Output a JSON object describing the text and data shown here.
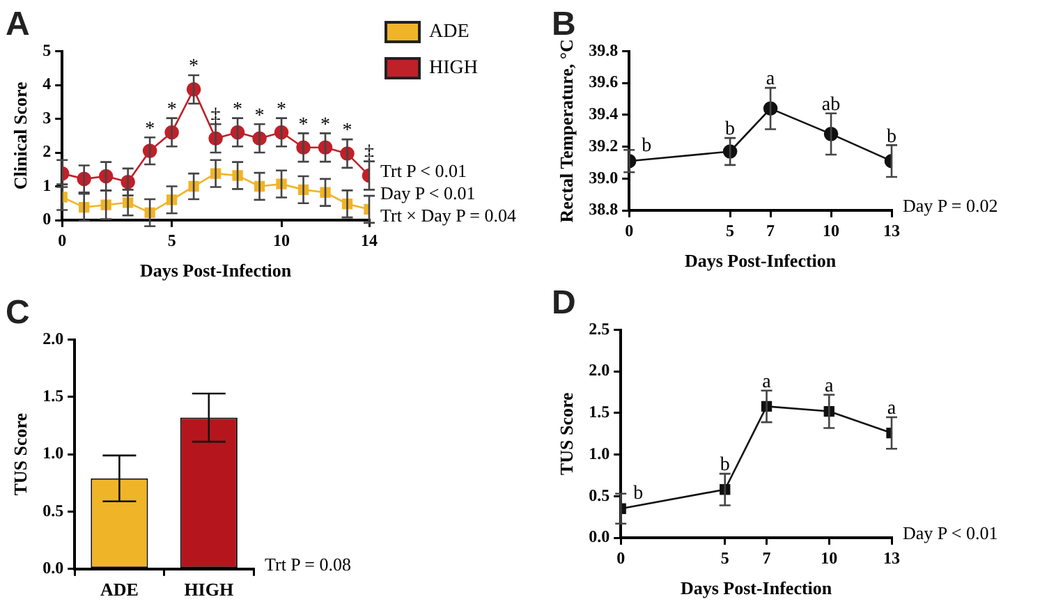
{
  "chart_data": [
    {
      "type": "line",
      "title": "A",
      "xlabel": "Days Post-Infection",
      "ylabel": "Clinical Score",
      "x": [
        0,
        1,
        2,
        3,
        4,
        5,
        6,
        7,
        8,
        9,
        10,
        11,
        12,
        13,
        14
      ],
      "series": [
        {
          "name": "ADE",
          "color": "#f0b429",
          "marker": "square",
          "values": [
            0.68,
            0.38,
            0.45,
            0.52,
            0.22,
            0.6,
            1.0,
            1.38,
            1.32,
            1.0,
            1.07,
            0.9,
            0.82,
            0.48,
            0.32
          ],
          "errors": [
            0.38,
            0.4,
            0.42,
            0.38,
            0.4,
            0.4,
            0.38,
            0.4,
            0.4,
            0.4,
            0.4,
            0.4,
            0.4,
            0.4,
            0.4
          ]
        },
        {
          "name": "HIGH",
          "color": "#c0202a",
          "marker": "circle",
          "values": [
            1.38,
            1.22,
            1.3,
            1.13,
            2.05,
            2.6,
            3.87,
            2.42,
            2.6,
            2.42,
            2.6,
            2.15,
            2.15,
            1.97,
            1.32
          ],
          "errors": [
            0.4,
            0.4,
            0.42,
            0.4,
            0.4,
            0.42,
            0.42,
            0.42,
            0.42,
            0.42,
            0.42,
            0.42,
            0.42,
            0.42,
            0.42
          ]
        }
      ],
      "xlim": [
        0,
        14
      ],
      "xticks": [
        0,
        5,
        10,
        14
      ],
      "ylim": [
        0,
        5
      ],
      "yticks": [
        0,
        1,
        2,
        3,
        4,
        5
      ],
      "grid": false,
      "legend": "right",
      "annotations": [
        {
          "text": "*",
          "x": 4,
          "y": 2.05
        },
        {
          "text": "*",
          "x": 5,
          "y": 2.6
        },
        {
          "text": "*",
          "x": 6,
          "y": 3.87
        },
        {
          "text": "‡",
          "x": 7,
          "y": 2.42
        },
        {
          "text": "*",
          "x": 8,
          "y": 2.6
        },
        {
          "text": "*",
          "x": 9,
          "y": 2.42
        },
        {
          "text": "*",
          "x": 10,
          "y": 2.6
        },
        {
          "text": "*",
          "x": 11,
          "y": 2.15
        },
        {
          "text": "*",
          "x": 12,
          "y": 2.15
        },
        {
          "text": "*",
          "x": 13,
          "y": 1.97
        },
        {
          "text": "‡",
          "x": 14,
          "y": 1.32
        },
        "Trt P < 0.01",
        "Day P < 0.01",
        "Trt × Day P = 0.04"
      ]
    },
    {
      "type": "line",
      "title": "B",
      "xlabel": "Days Post-Infection",
      "ylabel": "Rectal Temperature, °C",
      "x": [
        0,
        5,
        7,
        10,
        13
      ],
      "series": [
        {
          "color": "#111111",
          "values": [
            39.11,
            39.17,
            39.44,
            39.28,
            39.11
          ],
          "errors": [
            0.07,
            0.085,
            0.13,
            0.13,
            0.1
          ]
        }
      ],
      "marker": "circle",
      "xlim": [
        0,
        13
      ],
      "xticks": [
        0,
        5,
        7,
        10,
        13
      ],
      "ylim": [
        38.8,
        39.8
      ],
      "yticks": [
        {
          "value": 38.8,
          "label": "38.8"
        },
        {
          "value": 39.0,
          "label": "39.0"
        },
        {
          "value": 39.2,
          "label": "39.2"
        },
        {
          "value": 39.4,
          "label": "39.4"
        },
        {
          "value": 39.6,
          "label": "39.6"
        },
        {
          "value": 39.8,
          "label": "39.8"
        }
      ],
      "grid": false,
      "annotations": [
        {
          "text": "b",
          "x": 0,
          "y": 39.11
        },
        {
          "text": "b",
          "x": 5,
          "y": 39.17
        },
        {
          "text": "a",
          "x": 7,
          "y": 39.44
        },
        {
          "text": "ab",
          "x": 10,
          "y": 39.28
        },
        {
          "text": "b",
          "x": 13,
          "y": 39.11
        },
        "Day P = 0.02"
      ]
    },
    {
      "type": "bar",
      "title": "C",
      "ylabel": "TUS Score",
      "categories": [
        "ADE",
        "HIGH"
      ],
      "values": [
        0.79,
        1.32
      ],
      "errors": [
        0.2,
        0.21
      ],
      "colors": [
        "#f0b429",
        "#b5161d"
      ],
      "ylim": [
        0,
        2
      ],
      "yticks": [
        {
          "value": 0,
          "label": "0.0"
        },
        {
          "value": 0.5,
          "label": "0.5"
        },
        {
          "value": 1,
          "label": "1.0"
        },
        {
          "value": 1.5,
          "label": "1.5"
        },
        {
          "value": 2,
          "label": "2.0"
        }
      ],
      "grid": false,
      "annotations": [
        "Trt P = 0.08"
      ]
    },
    {
      "type": "line",
      "title": "D",
      "xlabel": "Days Post-Infection",
      "ylabel": "TUS Score",
      "x": [
        0,
        5,
        7,
        10,
        13
      ],
      "series": [
        {
          "color": "#111111",
          "values": [
            0.35,
            0.58,
            1.58,
            1.52,
            1.26
          ],
          "errors": [
            0.18,
            0.19,
            0.19,
            0.2,
            0.19
          ]
        }
      ],
      "marker": "square",
      "xlim": [
        0,
        13
      ],
      "xticks": [
        0,
        5,
        7,
        10,
        13
      ],
      "ylim": [
        0,
        2.5
      ],
      "yticks": [
        {
          "value": 0,
          "label": "0.0"
        },
        {
          "value": 0.5,
          "label": "0.5"
        },
        {
          "value": 1,
          "label": "1.0"
        },
        {
          "value": 1.5,
          "label": "1.5"
        },
        {
          "value": 2,
          "label": "2.0"
        },
        {
          "value": 2.5,
          "label": "2.5"
        }
      ],
      "grid": false,
      "annotations": [
        {
          "text": "b",
          "x": 0,
          "y": 0.35
        },
        {
          "text": "b",
          "x": 5,
          "y": 0.58
        },
        {
          "text": "a",
          "x": 7,
          "y": 1.58
        },
        {
          "text": "a",
          "x": 10,
          "y": 1.52
        },
        {
          "text": "a",
          "x": 13,
          "y": 1.26
        },
        "Day P < 0.01"
      ]
    }
  ]
}
